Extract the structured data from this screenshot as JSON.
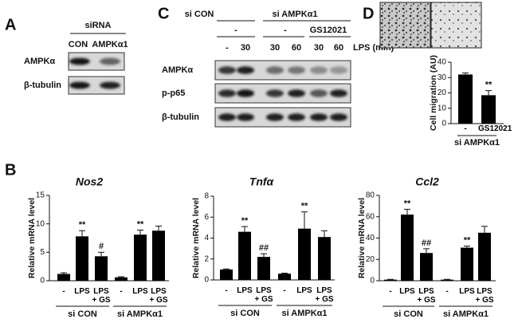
{
  "panel_labels": [
    "A",
    "B",
    "C",
    "D"
  ],
  "panel_a": {
    "header": "siRNA",
    "lanes": [
      "CON",
      "AMPKα1"
    ],
    "rows": [
      "AMPKα",
      "β-tubulin"
    ]
  },
  "panel_c": {
    "groups": [
      "si CON",
      "si AMPKα1"
    ],
    "treatments": [
      "-",
      "-",
      "GS12021"
    ],
    "lps": [
      "-",
      "30",
      "30",
      "60",
      "30",
      "60"
    ],
    "lps_label": "LPS (min)",
    "rows": [
      "AMPKα",
      "p-p65",
      "β-tubulin"
    ]
  },
  "chart_data": [
    {
      "type": "bar",
      "title": "Nos2",
      "ylabel": "Relative mRNA level",
      "color": "#000000",
      "categories": [
        "-",
        "LPS",
        "LPS + GS",
        "-",
        "LPS",
        "LPS + GS"
      ],
      "groups": [
        "si CON",
        "si AMPKα1"
      ],
      "values": [
        1.2,
        7.8,
        4.3,
        0.6,
        8.1,
        8.8
      ],
      "errors": [
        0.2,
        1.0,
        0.7,
        0.1,
        0.8,
        0.8
      ],
      "annotations": [
        null,
        "**",
        "#",
        null,
        "**",
        null
      ],
      "ylim": [
        0,
        15
      ],
      "yticks": [
        0,
        5,
        10,
        15
      ]
    },
    {
      "type": "bar",
      "title": "Tnfα",
      "ylabel": "Relative mRNA level",
      "color": "#000000",
      "categories": [
        "-",
        "LPS",
        "LPS + GS",
        "-",
        "LPS",
        "LPS + GS"
      ],
      "groups": [
        "si CON",
        "si AMPKα1"
      ],
      "values": [
        1.0,
        4.6,
        2.2,
        0.6,
        4.9,
        4.1
      ],
      "errors": [
        0.05,
        0.5,
        0.3,
        0.05,
        1.6,
        0.6
      ],
      "annotations": [
        null,
        "**",
        "##",
        null,
        "**",
        null
      ],
      "ylim": [
        0,
        8
      ],
      "yticks": [
        0,
        2,
        4,
        6,
        8
      ]
    },
    {
      "type": "bar",
      "title": "Ccl2",
      "ylabel": "Relative mRNA level",
      "color": "#000000",
      "categories": [
        "-",
        "LPS",
        "LPS + GS",
        "-",
        "LPS",
        "LPS + GS"
      ],
      "groups": [
        "si CON",
        "si AMPKα1"
      ],
      "values": [
        1,
        62,
        26,
        1,
        31,
        45
      ],
      "errors": [
        0.3,
        5,
        4,
        0.3,
        1.5,
        6
      ],
      "annotations": [
        null,
        "**",
        "##",
        null,
        "**",
        null
      ],
      "ylim": [
        0,
        80
      ],
      "yticks": [
        0,
        20,
        40,
        60,
        80
      ]
    },
    {
      "type": "bar",
      "ylabel": "Cell migration (AU)",
      "color": "#000000",
      "categories": [
        "-",
        "GS12021"
      ],
      "groups": [
        "si AMPKα1"
      ],
      "values": [
        32,
        18.5
      ],
      "errors": [
        1,
        3
      ],
      "annotations": [
        null,
        "**"
      ],
      "ylim": [
        0,
        40
      ],
      "yticks": [
        0,
        10,
        20,
        30,
        40
      ]
    }
  ]
}
